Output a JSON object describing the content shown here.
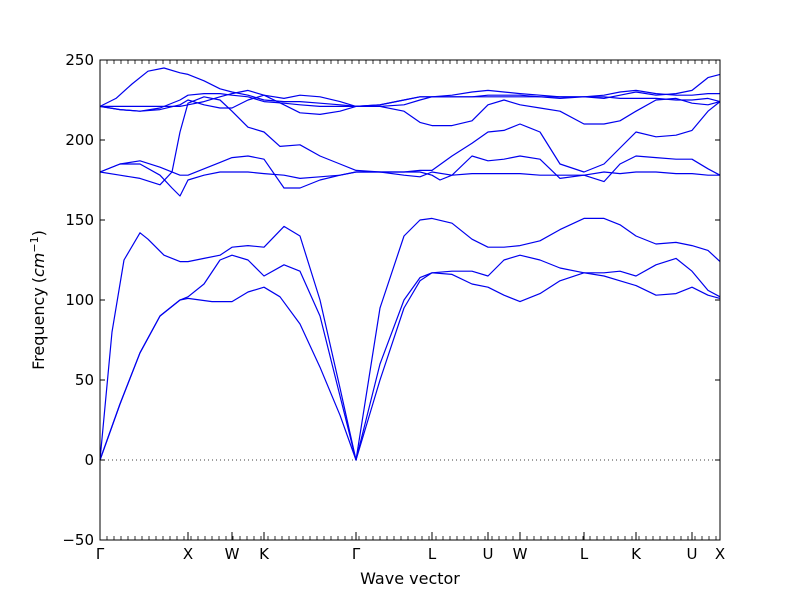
{
  "chart_data": {
    "type": "line",
    "xlabel": "Wave vector",
    "ylabel": "Frequency",
    "yunit": "cm",
    "yunit_exp": "−1",
    "ylim": [
      -50,
      250
    ],
    "yticks": [
      -50,
      0,
      50,
      100,
      150,
      200,
      250
    ],
    "xlim": [
      0,
      15.5
    ],
    "special_points": [
      {
        "label": "Γ",
        "x": 0
      },
      {
        "label": "X",
        "x": 2.2
      },
      {
        "label": "W",
        "x": 3.3
      },
      {
        "label": "K",
        "x": 4.1
      },
      {
        "label": "Γ",
        "x": 6.4
      },
      {
        "label": "L",
        "x": 8.3
      },
      {
        "label": "U",
        "x": 9.7
      },
      {
        "label": "W",
        "x": 10.5
      },
      {
        "label": "L",
        "x": 12.1
      },
      {
        "label": "K",
        "x": 13.4
      },
      {
        "label": "U",
        "x": 14.8
      },
      {
        "label": "X",
        "x": 15.5
      }
    ],
    "zero_line": {
      "y": 0,
      "style": "dotted"
    },
    "line_color": "#0000ee",
    "series": [
      {
        "x": [
          0,
          0.5,
          1.0,
          1.5,
          2.0,
          2.2,
          2.8,
          3.3,
          3.7,
          4.1,
          4.5,
          5.0,
          5.5,
          6.0,
          6.4,
          7.0,
          7.6,
          8.0,
          8.3,
          8.8,
          9.3,
          9.7,
          10.1,
          10.5,
          11.0,
          11.5,
          12.1,
          12.6,
          13.0,
          13.4,
          13.9,
          14.4,
          14.8,
          15.2,
          15.5
        ],
        "y": [
          0,
          35,
          67,
          90,
          100,
          101,
          99,
          99,
          105,
          108,
          102,
          85,
          58,
          28,
          0,
          50,
          95,
          112,
          117,
          116,
          110,
          108,
          103,
          99,
          104,
          112,
          117,
          115,
          112,
          109,
          103,
          104,
          108,
          103,
          101
        ]
      },
      {
        "x": [
          0,
          0.5,
          1.0,
          1.5,
          2.0,
          2.2,
          2.6,
          3.0,
          3.3,
          3.7,
          4.1,
          4.6,
          5.0,
          5.5,
          6.0,
          6.4,
          7.0,
          7.6,
          8.0,
          8.3,
          8.8,
          9.3,
          9.7,
          10.1,
          10.5,
          11.0,
          11.5,
          12.1,
          12.6,
          13.0,
          13.4,
          13.9,
          14.4,
          14.8,
          15.2,
          15.5
        ],
        "y": [
          0,
          35,
          67,
          90,
          100,
          102,
          110,
          125,
          128,
          125,
          115,
          122,
          118,
          90,
          40,
          0,
          60,
          100,
          114,
          117,
          118,
          118,
          115,
          125,
          128,
          125,
          120,
          117,
          117,
          118,
          115,
          122,
          126,
          118,
          106,
          102
        ]
      },
      {
        "x": [
          0,
          0.3,
          0.6,
          1.0,
          1.2,
          1.6,
          2.0,
          2.2,
          2.6,
          3.0,
          3.3,
          3.7,
          4.1,
          4.6,
          5.0,
          5.5,
          6.0,
          6.4,
          7.0,
          7.6,
          8.0,
          8.3,
          8.8,
          9.3,
          9.7,
          10.1,
          10.5,
          11.0,
          11.5,
          12.1,
          12.6,
          13.0,
          13.4,
          13.9,
          14.4,
          14.8,
          15.2,
          15.5
        ],
        "y": [
          0,
          80,
          125,
          142,
          138,
          128,
          124,
          124,
          126,
          128,
          133,
          134,
          133,
          146,
          140,
          100,
          45,
          0,
          95,
          140,
          150,
          151,
          148,
          138,
          133,
          133,
          134,
          137,
          144,
          151,
          151,
          147,
          140,
          135,
          136,
          134,
          131,
          124
        ]
      },
      {
        "x": [
          0,
          0.5,
          1.0,
          1.5,
          1.8,
          2.0,
          2.2,
          2.6,
          3.0,
          3.3,
          3.7,
          4.1,
          4.6,
          5.0,
          5.5,
          6.0,
          6.4,
          7.0,
          7.6,
          8.0,
          8.3,
          8.8,
          9.3,
          9.7,
          10.1,
          10.5,
          11.0,
          11.5,
          12.1,
          12.6,
          13.0,
          13.4,
          13.9,
          14.4,
          14.8,
          15.2,
          15.5
        ],
        "y": [
          180,
          185,
          185,
          178,
          170,
          165,
          175,
          178,
          180,
          180,
          180,
          179,
          178,
          176,
          177,
          178,
          180,
          180,
          178,
          177,
          180,
          178,
          179,
          179,
          179,
          179,
          178,
          178,
          178,
          180,
          179,
          180,
          180,
          179,
          179,
          178,
          178
        ]
      },
      {
        "x": [
          0,
          0.5,
          1.0,
          1.5,
          2.0,
          2.2,
          2.6,
          3.0,
          3.3,
          3.7,
          4.1,
          4.6,
          5.0,
          5.5,
          6.0,
          6.4,
          7.0,
          7.6,
          8.0,
          8.3,
          8.5,
          8.8,
          9.3,
          9.7,
          10.1,
          10.5,
          11.0,
          11.5,
          12.1,
          12.6,
          13.0,
          13.4,
          13.9,
          14.4,
          14.8,
          15.2,
          15.5
        ],
        "y": [
          180,
          185,
          187,
          183,
          178,
          178,
          182,
          186,
          189,
          190,
          188,
          170,
          170,
          175,
          178,
          180,
          180,
          180,
          180,
          178,
          175,
          178,
          190,
          187,
          188,
          190,
          188,
          176,
          178,
          174,
          185,
          190,
          189,
          188,
          188,
          182,
          178
        ]
      },
      {
        "x": [
          0,
          0.5,
          1.0,
          1.5,
          1.8,
          2.0,
          2.2,
          2.6,
          3.0,
          3.3,
          3.7,
          4.1,
          4.5,
          5.0,
          5.5,
          6.0,
          6.4,
          7.0,
          7.6,
          8.0,
          8.3,
          8.8,
          9.3,
          9.7,
          10.1,
          10.5,
          11.0,
          11.5,
          12.1,
          12.6,
          13.0,
          13.4,
          13.9,
          14.4,
          14.8,
          15.2,
          15.5
        ],
        "y": [
          180,
          178,
          176,
          172,
          180,
          205,
          223,
          227,
          225,
          218,
          208,
          205,
          196,
          197,
          190,
          185,
          181,
          180,
          180,
          181,
          181,
          190,
          198,
          205,
          206,
          210,
          205,
          185,
          180,
          185,
          195,
          205,
          202,
          203,
          206,
          218,
          224
        ]
      },
      {
        "x": [
          0,
          0.5,
          1.0,
          1.5,
          2.0,
          2.2,
          2.6,
          3.0,
          3.3,
          3.7,
          4.1,
          4.6,
          5.0,
          5.5,
          6.0,
          6.4,
          7.0,
          7.6,
          8.0,
          8.3,
          8.8,
          9.3,
          9.7,
          10.1,
          10.5,
          11.0,
          11.5,
          12.1,
          12.6,
          13.0,
          13.4,
          13.9,
          14.4,
          14.8,
          15.2,
          15.5
        ],
        "y": [
          221,
          219,
          218,
          219,
          222,
          225,
          222,
          220,
          220,
          225,
          228,
          222,
          217,
          216,
          218,
          221,
          221,
          218,
          211,
          209,
          209,
          212,
          222,
          225,
          222,
          220,
          218,
          210,
          210,
          212,
          218,
          225,
          226,
          223,
          222,
          224
        ]
      },
      {
        "x": [
          0,
          0.5,
          1.0,
          1.5,
          2.0,
          2.2,
          2.6,
          3.0,
          3.3,
          3.7,
          4.1,
          4.6,
          5.0,
          5.5,
          6.0,
          6.4,
          7.0,
          7.6,
          8.0,
          8.3,
          8.8,
          9.3,
          9.7,
          10.1,
          10.5,
          11.0,
          11.5,
          12.1,
          12.6,
          13.0,
          13.4,
          13.9,
          14.4,
          14.8,
          15.2,
          15.5
        ],
        "y": [
          221,
          219,
          218,
          220,
          225,
          228,
          229,
          229,
          228,
          227,
          224,
          223,
          222,
          221,
          221,
          221,
          222,
          225,
          227,
          227,
          227,
          227,
          228,
          228,
          228,
          227,
          226,
          227,
          227,
          226,
          226,
          226,
          225,
          225,
          226,
          224
        ]
      },
      {
        "x": [
          0,
          0.4,
          0.8,
          1.2,
          1.6,
          2.0,
          2.2,
          2.6,
          3.0,
          3.3,
          3.7,
          4.1,
          4.6,
          5.0,
          5.5,
          6.0,
          6.4,
          7.0,
          7.6,
          8.0,
          8.3,
          8.8,
          9.3,
          9.7,
          10.1,
          10.5,
          11.0,
          11.5,
          12.1,
          12.6,
          13.0,
          13.4,
          13.9,
          14.4,
          14.8,
          15.2,
          15.5
        ],
        "y": [
          221,
          226,
          235,
          243,
          245,
          242,
          241,
          237,
          232,
          230,
          228,
          225,
          224,
          224,
          223,
          222,
          221,
          222,
          225,
          227,
          227,
          228,
          230,
          231,
          230,
          229,
          228,
          227,
          227,
          226,
          228,
          230,
          228,
          229,
          231,
          239,
          241
        ]
      },
      {
        "x": [
          0,
          0.5,
          1.0,
          1.5,
          2.0,
          2.2,
          2.6,
          3.0,
          3.3,
          3.7,
          4.1,
          4.6,
          5.0,
          5.5,
          6.0,
          6.4,
          7.0,
          7.6,
          8.0,
          8.3,
          8.8,
          9.3,
          9.7,
          10.1,
          10.5,
          11.0,
          11.5,
          12.1,
          12.6,
          13.0,
          13.4,
          13.9,
          14.4,
          14.8,
          15.2,
          15.5
        ],
        "y": [
          221,
          221,
          221,
          221,
          221,
          222,
          224,
          227,
          229,
          231,
          228,
          226,
          228,
          227,
          224,
          221,
          221,
          222,
          225,
          227,
          227,
          227,
          227,
          227,
          227,
          227,
          227,
          227,
          228,
          230,
          231,
          229,
          228,
          228,
          229,
          229
        ]
      }
    ]
  }
}
